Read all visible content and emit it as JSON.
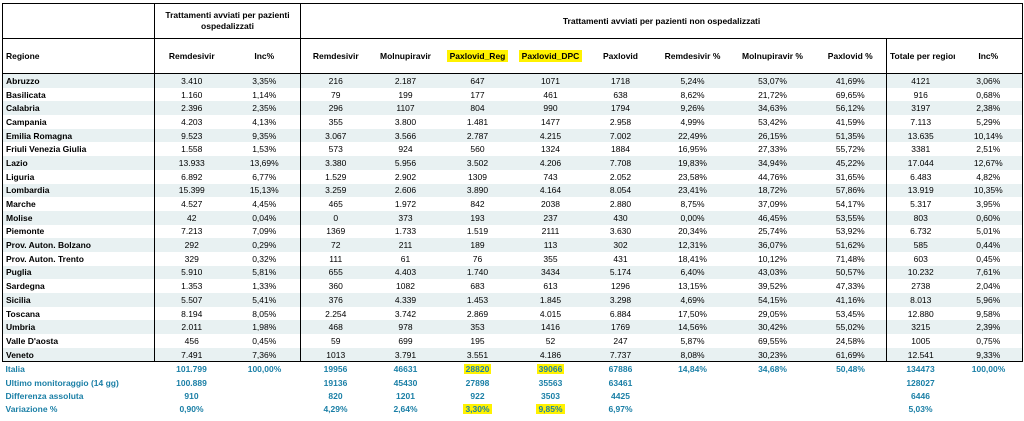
{
  "header": {
    "group_ospedalizzati": "Trattamenti avviati per pazienti ospedalizzati",
    "group_non_ospedalizzati": "Trattamenti avviati per pazienti non ospedalizzati",
    "columns": [
      "Regione",
      "Remdesivir",
      "Inc%",
      "Remdesivir",
      "Molnupiravir",
      "Paxlovid_Reg",
      "Paxlovid_DPC",
      "Paxlovid",
      "Remdesivir %",
      "Molnupiravir %",
      "Paxlovid %",
      "Totale per regione",
      "Inc%"
    ]
  },
  "highlight_color": "#fff200",
  "summary_color": "#1a7fa6",
  "rows": [
    [
      "Abruzzo",
      "3.410",
      "3,35%",
      "216",
      "2.187",
      "647",
      "1071",
      "1718",
      "5,24%",
      "53,07%",
      "41,69%",
      "4121",
      "3,06%"
    ],
    [
      "Basilicata",
      "1.160",
      "1,14%",
      "79",
      "199",
      "177",
      "461",
      "638",
      "8,62%",
      "21,72%",
      "69,65%",
      "916",
      "0,68%"
    ],
    [
      "Calabria",
      "2.396",
      "2,35%",
      "296",
      "1107",
      "804",
      "990",
      "1794",
      "9,26%",
      "34,63%",
      "56,12%",
      "3197",
      "2,38%"
    ],
    [
      "Campania",
      "4.203",
      "4,13%",
      "355",
      "3.800",
      "1.481",
      "1477",
      "2.958",
      "4,99%",
      "53,42%",
      "41,59%",
      "7.113",
      "5,29%"
    ],
    [
      "Emilia Romagna",
      "9.523",
      "9,35%",
      "3.067",
      "3.566",
      "2.787",
      "4.215",
      "7.002",
      "22,49%",
      "26,15%",
      "51,35%",
      "13.635",
      "10,14%"
    ],
    [
      "Friuli Venezia Giulia",
      "1.558",
      "1,53%",
      "573",
      "924",
      "560",
      "1324",
      "1884",
      "16,95%",
      "27,33%",
      "55,72%",
      "3381",
      "2,51%"
    ],
    [
      "Lazio",
      "13.933",
      "13,69%",
      "3.380",
      "5.956",
      "3.502",
      "4.206",
      "7.708",
      "19,83%",
      "34,94%",
      "45,22%",
      "17.044",
      "12,67%"
    ],
    [
      "Liguria",
      "6.892",
      "6,77%",
      "1.529",
      "2.902",
      "1309",
      "743",
      "2.052",
      "23,58%",
      "44,76%",
      "31,65%",
      "6.483",
      "4,82%"
    ],
    [
      "Lombardia",
      "15.399",
      "15,13%",
      "3.259",
      "2.606",
      "3.890",
      "4.164",
      "8.054",
      "23,41%",
      "18,72%",
      "57,86%",
      "13.919",
      "10,35%"
    ],
    [
      "Marche",
      "4.527",
      "4,45%",
      "465",
      "1.972",
      "842",
      "2038",
      "2.880",
      "8,75%",
      "37,09%",
      "54,17%",
      "5.317",
      "3,95%"
    ],
    [
      "Molise",
      "42",
      "0,04%",
      "0",
      "373",
      "193",
      "237",
      "430",
      "0,00%",
      "46,45%",
      "53,55%",
      "803",
      "0,60%"
    ],
    [
      "Piemonte",
      "7.213",
      "7,09%",
      "1369",
      "1.733",
      "1.519",
      "2111",
      "3.630",
      "20,34%",
      "25,74%",
      "53,92%",
      "6.732",
      "5,01%"
    ],
    [
      "Prov. Auton. Bolzano",
      "292",
      "0,29%",
      "72",
      "211",
      "189",
      "113",
      "302",
      "12,31%",
      "36,07%",
      "51,62%",
      "585",
      "0,44%"
    ],
    [
      "Prov. Auton. Trento",
      "329",
      "0,32%",
      "111",
      "61",
      "76",
      "355",
      "431",
      "18,41%",
      "10,12%",
      "71,48%",
      "603",
      "0,45%"
    ],
    [
      "Puglia",
      "5.910",
      "5,81%",
      "655",
      "4.403",
      "1.740",
      "3434",
      "5.174",
      "6,40%",
      "43,03%",
      "50,57%",
      "10.232",
      "7,61%"
    ],
    [
      "Sardegna",
      "1.353",
      "1,33%",
      "360",
      "1082",
      "683",
      "613",
      "1296",
      "13,15%",
      "39,52%",
      "47,33%",
      "2738",
      "2,04%"
    ],
    [
      "Sicilia",
      "5.507",
      "5,41%",
      "376",
      "4.339",
      "1.453",
      "1.845",
      "3.298",
      "4,69%",
      "54,15%",
      "41,16%",
      "8.013",
      "5,96%"
    ],
    [
      "Toscana",
      "8.194",
      "8,05%",
      "2.254",
      "3.742",
      "2.869",
      "4.015",
      "6.884",
      "17,50%",
      "29,05%",
      "53,45%",
      "12.880",
      "9,58%"
    ],
    [
      "Umbria",
      "2.011",
      "1,98%",
      "468",
      "978",
      "353",
      "1416",
      "1769",
      "14,56%",
      "30,42%",
      "55,02%",
      "3215",
      "2,39%"
    ],
    [
      "Valle D'aosta",
      "456",
      "0,45%",
      "59",
      "699",
      "195",
      "52",
      "247",
      "5,87%",
      "69,55%",
      "24,58%",
      "1005",
      "0,75%"
    ],
    [
      "Veneto",
      "7.491",
      "7,36%",
      "1013",
      "3.791",
      "3.551",
      "4.186",
      "7.737",
      "8,08%",
      "30,23%",
      "61,69%",
      "12.541",
      "9,33%"
    ]
  ],
  "summary": [
    [
      "Italia",
      "101.799",
      "100,00%",
      "19956",
      "46631",
      "28820",
      "39066",
      "67886",
      "14,84%",
      "34,68%",
      "50,48%",
      "134473",
      "100,00%"
    ],
    [
      "Ultimo monitoraggio (14 gg)",
      "100.889",
      "",
      "19136",
      "45430",
      "27898",
      "35563",
      "63461",
      "",
      "",
      "",
      "128027",
      ""
    ],
    [
      "Differenza assoluta",
      "910",
      "",
      "820",
      "1201",
      "922",
      "3503",
      "4425",
      "",
      "",
      "",
      "6446",
      ""
    ],
    [
      "Variazione %",
      "0,90%",
      "",
      "4,29%",
      "2,64%",
      "3,30%",
      "9,85%",
      "6,97%",
      "",
      "",
      "",
      "5,03%",
      ""
    ]
  ]
}
